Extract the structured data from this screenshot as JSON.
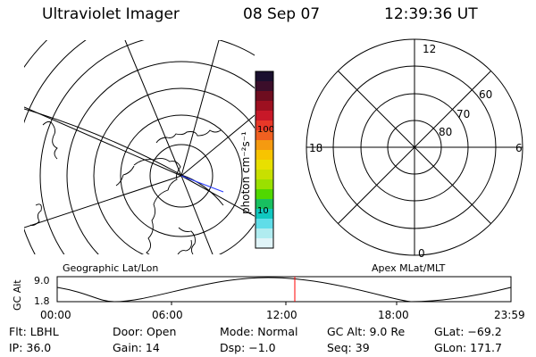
{
  "header": {
    "title": "Ultraviolet Imager",
    "date": "08 Sep 07",
    "time": "12:39:36 UT"
  },
  "left_map": {
    "label": "Geographic Lat/Lon"
  },
  "right_map": {
    "label": "Apex MLat/MLT",
    "mlt_labels": [
      "12",
      "18",
      "6",
      "0"
    ],
    "lat_labels": [
      "60",
      "70",
      "80"
    ]
  },
  "colorbar": {
    "unit_label": "photon cm⁻²s⁻¹",
    "ticks": [
      "100",
      "10"
    ],
    "colors": [
      "#1a0f2e",
      "#3b0e2a",
      "#6e0d1f",
      "#9d1020",
      "#c81828",
      "#e83828",
      "#f06020",
      "#f59a10",
      "#f7c400",
      "#e8e000",
      "#c8e000",
      "#9ae000",
      "#50d800",
      "#18c060",
      "#10c8c0",
      "#60dde8",
      "#b0ecf0",
      "#e0f4f8"
    ]
  },
  "altitude_plot": {
    "ylabel": "GC Alt",
    "y_ticks": [
      "9.0",
      "1.8"
    ],
    "x_ticks": [
      "00:00",
      "06:00",
      "12:00",
      "18:00",
      "23:59"
    ],
    "current_time_color": "#ff0000"
  },
  "status": {
    "row1": [
      {
        "label": "Flt: LBHL"
      },
      {
        "label": "Door: Open"
      },
      {
        "label": "Mode: Normal"
      },
      {
        "label": "GC Alt: 9.0 Re"
      },
      {
        "label": "GLat: −69.2"
      }
    ],
    "row2": [
      {
        "label": "IP: 36.0"
      },
      {
        "label": "Gain: 14"
      },
      {
        "label": "Dsp:   −1.0"
      },
      {
        "label": "Seq: 39"
      },
      {
        "label": "GLon: 171.7"
      }
    ]
  }
}
